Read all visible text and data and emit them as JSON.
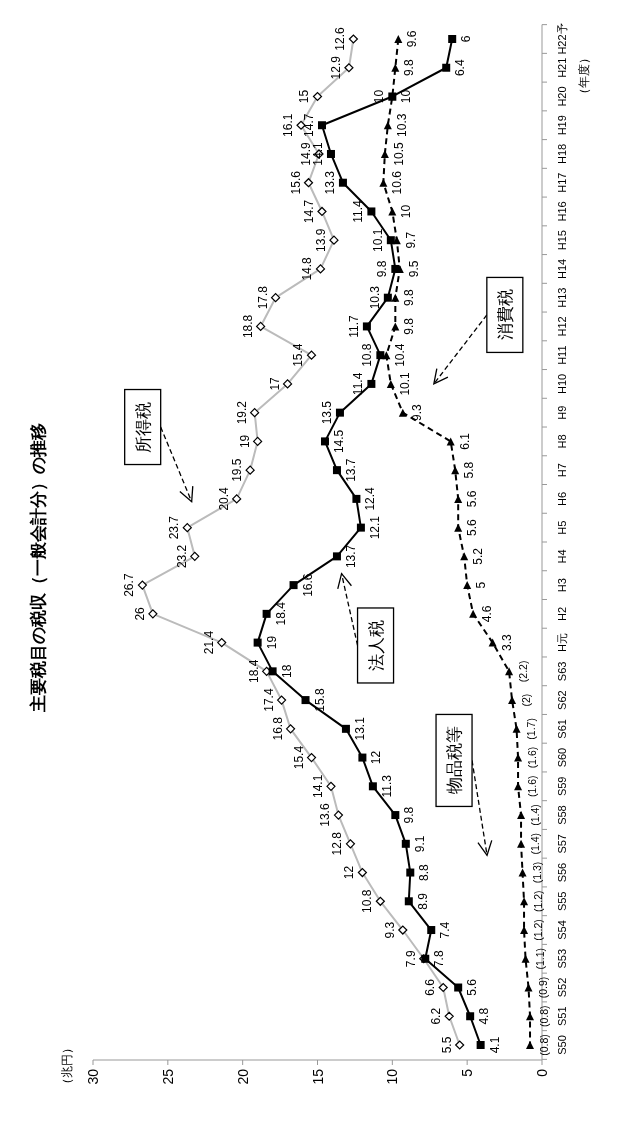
{
  "chart_data": {
    "type": "line",
    "orientation": "horizontal",
    "title": "主要税目の税収（一般会計分）の推移",
    "ylabel": "（年度）",
    "categories": [
      "H22予",
      "H21",
      "H20",
      "H19",
      "H18",
      "H17",
      "H16",
      "H15",
      "H14",
      "H13",
      "H12",
      "H11",
      "H10",
      "H9",
      "H8",
      "H7",
      "H6",
      "H5",
      "H4",
      "H3",
      "H2",
      "H元",
      "S63",
      "S62",
      "S61",
      "S60",
      "S59",
      "S58",
      "S57",
      "S56",
      "S55",
      "S54",
      "S53",
      "S52",
      "S51",
      "S50"
    ],
    "xlim": [
      30,
      0
    ],
    "xticks": [
      30,
      25,
      20,
      15,
      10,
      5,
      0
    ],
    "series": [
      {
        "color": "#bbbbbb",
        "marker": "diamond",
        "line_style": "solid",
        "values": [
          12.6,
          12.9,
          15,
          16.1,
          14.9,
          15.6,
          14.7,
          13.9,
          14.8,
          17.8,
          18.8,
          15.4,
          17,
          19.2,
          19,
          19.5,
          20.4,
          23.7,
          23.2,
          26.7,
          26,
          21.4,
          18.4,
          17.4,
          16.8,
          15.4,
          14.1,
          13.6,
          12.8,
          12,
          10.8,
          9.3,
          7.9,
          6.6,
          6.2,
          5.5
        ],
        "value_labels": [
          "12.6",
          "12.9",
          "15",
          "16.1",
          "14.9",
          "15.6",
          "14.7",
          "13.9",
          "14.8",
          "17.8",
          "18.8",
          "15.4",
          "17",
          "19.2",
          "19",
          "19.5",
          "20.4",
          "23.7",
          "23.2",
          "26.7",
          "26",
          "21.4",
          "18.4",
          "17.4",
          "16.8",
          "15.4",
          "14.1",
          "13.6",
          "12.8",
          "12",
          "10.8",
          "9.3",
          "7.9",
          "6.6",
          "6.2",
          "5.5"
        ]
      },
      {
        "color": "#000000",
        "marker": "square",
        "line_style": "solid",
        "values": [
          6,
          6.4,
          10,
          14.7,
          14.1,
          13.3,
          11.4,
          10.1,
          9.8,
          10.3,
          11.7,
          10.8,
          11.4,
          13.5,
          14.5,
          13.7,
          12.4,
          12.1,
          13.7,
          16.6,
          18.4,
          19,
          18,
          15.8,
          13.1,
          12,
          11.3,
          9.8,
          9.1,
          8.8,
          8.9,
          7.4,
          7.8,
          5.6,
          4.8,
          4.1
        ],
        "value_labels": [
          "6",
          "6.4",
          "10",
          "14.7",
          "14.1",
          "13.3",
          "11.4",
          "10.1",
          "9.8",
          "10.3",
          "11.7",
          "10.8",
          "11.4",
          "13.5",
          "14.5",
          "13.7",
          "12.4",
          "12.1",
          "13.7",
          "16.6",
          "18.4",
          "19",
          "18",
          "15.8",
          "13.1",
          "12",
          "11.3",
          "9.8",
          "9.1",
          "8.8",
          "8.9",
          "7.4",
          "7.8",
          "5.6",
          "4.8",
          "4.1"
        ]
      },
      {
        "color": "#000000",
        "marker": "triangle",
        "line_style": "dashed",
        "values": [
          9.6,
          9.8,
          10,
          10.3,
          10.5,
          10.6,
          10,
          9.7,
          9.5,
          9.8,
          9.8,
          10.4,
          10.1,
          9.3,
          6.1,
          5.8,
          5.6,
          5.6,
          5.2,
          5,
          4.6,
          3.3,
          2.2,
          2,
          1.7,
          1.6,
          1.6,
          1.4,
          1.4,
          1.3,
          1.2,
          1.2,
          1.1,
          0.9,
          0.8,
          0.8
        ],
        "value_labels": [
          "9.6",
          "9.8",
          "10",
          "10.3",
          "10.5",
          "10.6",
          "10",
          "9.7",
          "9.5",
          "9.8",
          "9.8",
          "10.4",
          "10.1",
          "9.3",
          "6.1",
          "5.8",
          "5.6",
          "5.6",
          "5.2",
          "5",
          "4.6",
          "3.3",
          "(2.2)",
          "(2)",
          "(1.7)",
          "(1.6)",
          "(1.6)",
          "(1.4)",
          "(1.4)",
          "(1.3)",
          "(1.2)",
          "(1.2)",
          "(1.1)",
          "(0.9)",
          "(0.8)",
          "(0.8)"
        ]
      }
    ],
    "annotations": [
      "（兆円）",
      "所得税",
      "法人税",
      "消費税",
      "物品税等"
    ]
  }
}
